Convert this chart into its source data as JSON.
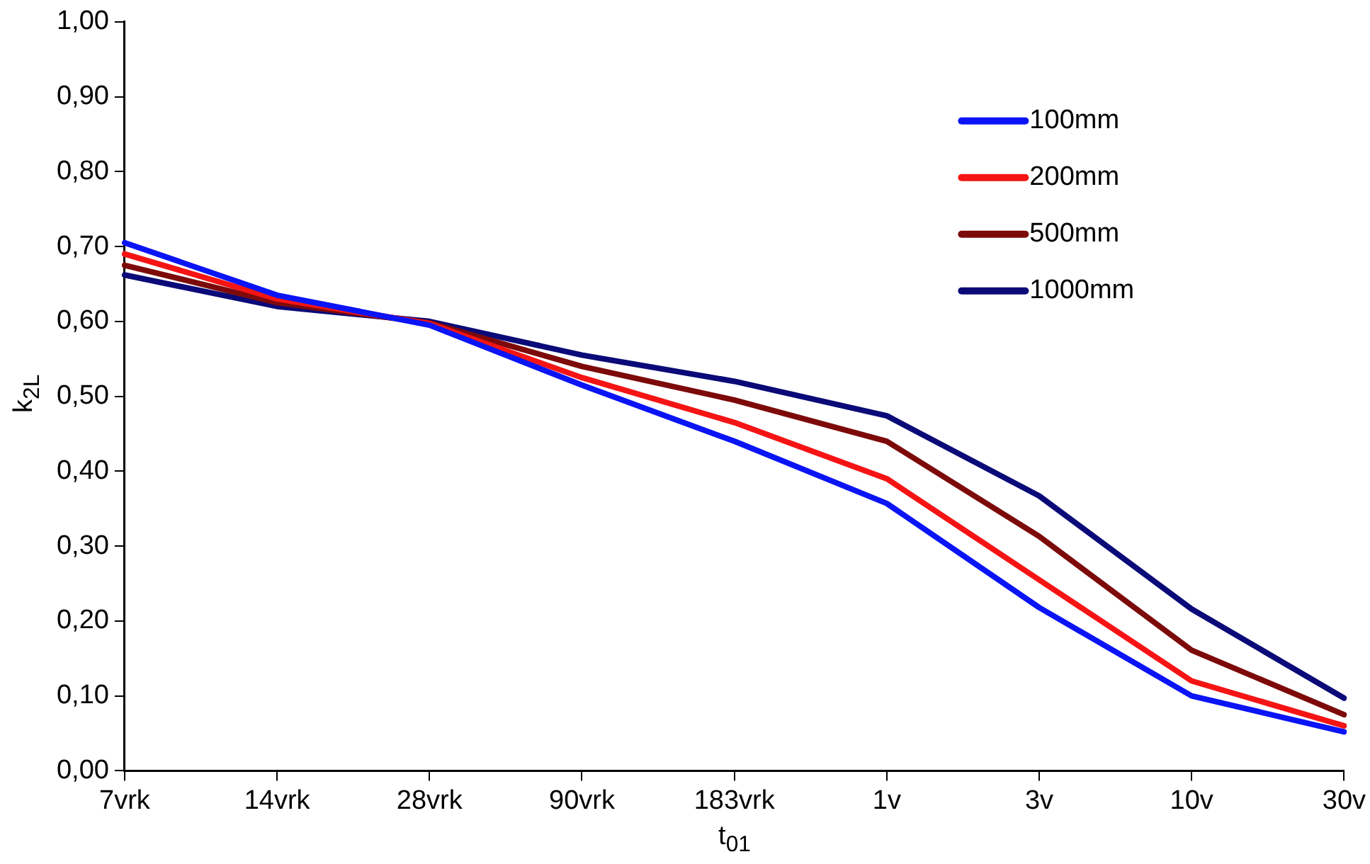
{
  "chart_data": {
    "type": "line",
    "xlabel": "t$_{01}$",
    "ylabel": "k$_{2L}$",
    "categories": [
      "7vrk",
      "14vrk",
      "28vrk",
      "90vrk",
      "183vrk",
      "1v",
      "3v",
      "10v",
      "30v"
    ],
    "series": [
      {
        "name": "100mm",
        "color": "#0a14f5",
        "values": [
          0.705,
          0.635,
          0.595,
          0.515,
          0.44,
          0.357,
          0.218,
          0.1,
          0.052
        ]
      },
      {
        "name": "200mm",
        "color": "#f51414",
        "values": [
          0.69,
          0.63,
          0.597,
          0.525,
          0.465,
          0.39,
          0.255,
          0.12,
          0.06
        ]
      },
      {
        "name": "500mm",
        "color": "#7d0a0a",
        "values": [
          0.675,
          0.625,
          0.598,
          0.54,
          0.495,
          0.44,
          0.313,
          0.161,
          0.075
        ]
      },
      {
        "name": "1000mm",
        "color": "#0a0a78",
        "values": [
          0.662,
          0.62,
          0.6,
          0.555,
          0.52,
          0.474,
          0.367,
          0.216,
          0.097
        ]
      }
    ],
    "ylim": [
      0,
      1
    ],
    "yticks": [
      {
        "value": 0,
        "label": "0,00"
      },
      {
        "value": 0.1,
        "label": "0,10"
      },
      {
        "value": 0.2,
        "label": "0,20"
      },
      {
        "value": 0.3,
        "label": "0,30"
      },
      {
        "value": 0.4,
        "label": "0,40"
      },
      {
        "value": 0.5,
        "label": "0,50"
      },
      {
        "value": 0.6,
        "label": "0,60"
      },
      {
        "value": 0.7,
        "label": "0,70"
      },
      {
        "value": 0.8,
        "label": "0,80"
      },
      {
        "value": 0.9,
        "label": "0,90"
      },
      {
        "value": 1,
        "label": "1,00"
      }
    ],
    "grid": false,
    "legend": "top right",
    "marker": "none",
    "line_style": "solid"
  }
}
